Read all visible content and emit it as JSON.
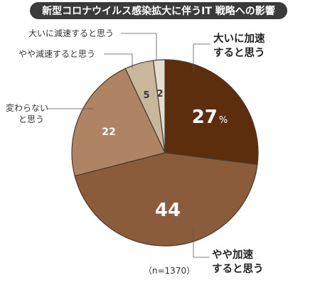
{
  "chart_data": {
    "type": "pie",
    "title": "新型コロナウイルス感染拡大に伴うIT 戦略への影響",
    "note": "（n=1370）",
    "unit_symbol": "%",
    "slices": [
      {
        "label_lines": [
          "大いに加速",
          "すると思う"
        ],
        "value": 27,
        "color": "#5c2e0e"
      },
      {
        "label_lines": [
          "やや加速",
          "すると思う"
        ],
        "value": 44,
        "color": "#8a5c3c"
      },
      {
        "label_lines": [
          "変わらない",
          "と思う"
        ],
        "value": 22,
        "color": "#ae8464"
      },
      {
        "label_lines": [
          "やや減速すると思う"
        ],
        "value": 5,
        "color": "#c9b79c"
      },
      {
        "label_lines": [
          "大いに減速すると思う"
        ],
        "value": 2,
        "color": "#e6ddd0"
      }
    ]
  }
}
